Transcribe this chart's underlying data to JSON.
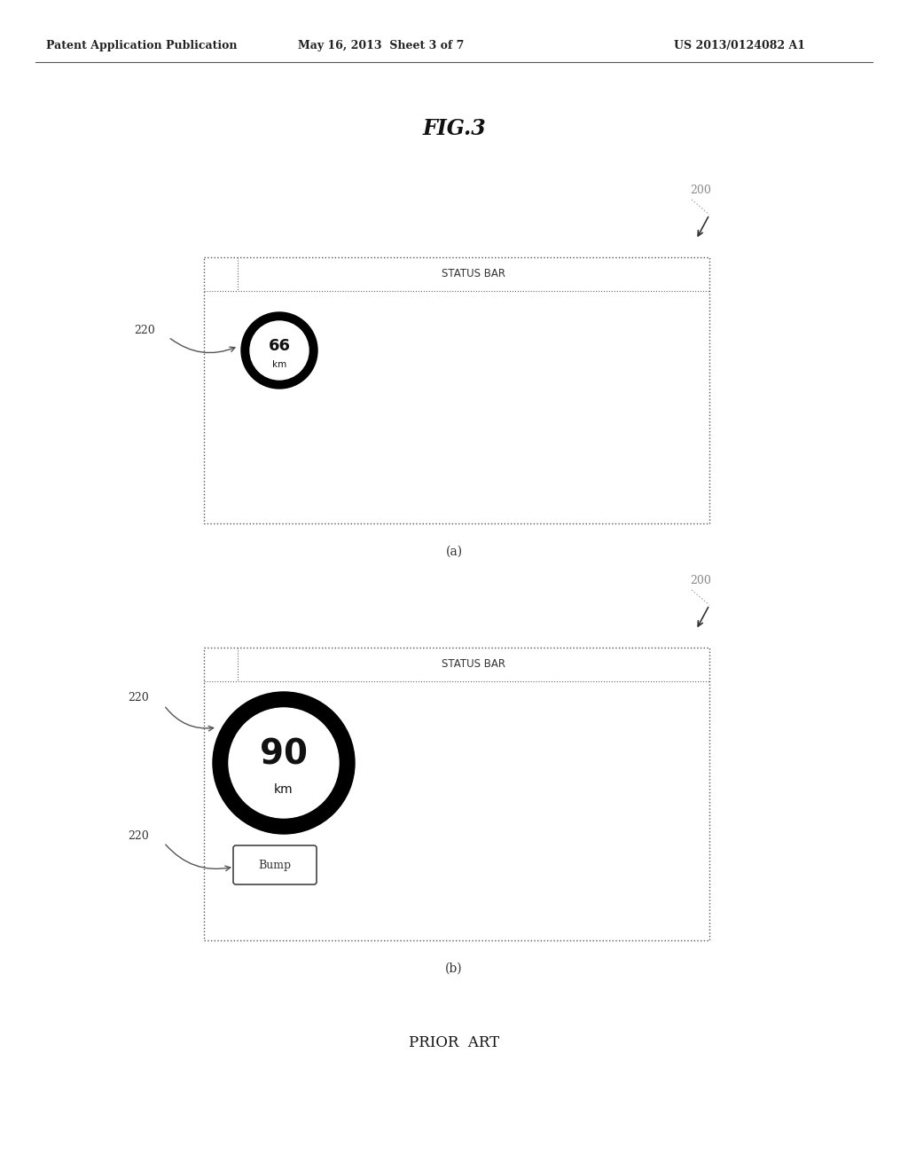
{
  "bg_color": "#ffffff",
  "header_left": "Patent Application Publication",
  "header_mid": "May 16, 2013  Sheet 3 of 7",
  "header_right": "US 2013/0124082 A1",
  "fig_title": "FIG.3",
  "diagram_a": {
    "label": "(a)",
    "ref_200_text": "200",
    "status_bar_text": "STATUS BAR",
    "speed_value": "66",
    "speed_unit": "km",
    "label_220_text": "220"
  },
  "diagram_b": {
    "label": "(b)",
    "ref_200_text": "200",
    "status_bar_text": "STATUS BAR",
    "speed_value": "90",
    "speed_unit": "km",
    "label_220a_text": "220",
    "label_220b_text": "220",
    "bump_text": "Bump"
  },
  "prior_art_text": "PRIOR  ART"
}
